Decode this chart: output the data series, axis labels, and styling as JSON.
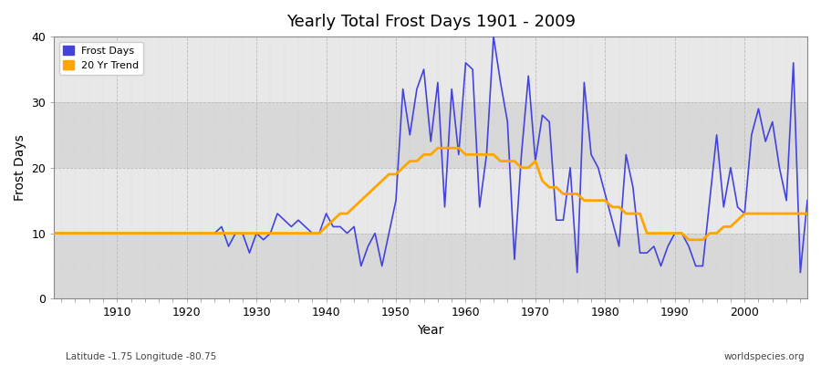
{
  "title": "Yearly Total Frost Days 1901 - 2009",
  "xlabel": "Year",
  "ylabel": "Frost Days",
  "footnote_left": "Latitude -1.75 Longitude -80.75",
  "footnote_right": "worldspecies.org",
  "legend_labels": [
    "Frost Days",
    "20 Yr Trend"
  ],
  "line_color": "#4444dd",
  "trend_color": "#FFA500",
  "background_color": "#ffffff",
  "plot_bg_color": "#e8e8e8",
  "band_color": "#d8d8d8",
  "ylim": [
    0,
    40
  ],
  "xlim": [
    1901,
    2009
  ],
  "frost_days": {
    "1901": 10,
    "1902": 10,
    "1903": 10,
    "1904": 10,
    "1905": 10,
    "1906": 10,
    "1907": 10,
    "1908": 10,
    "1909": 10,
    "1910": 10,
    "1911": 10,
    "1912": 10,
    "1913": 10,
    "1914": 10,
    "1915": 10,
    "1916": 10,
    "1917": 10,
    "1918": 10,
    "1919": 10,
    "1920": 10,
    "1921": 10,
    "1922": 10,
    "1923": 10,
    "1924": 10,
    "1925": 11,
    "1926": 8,
    "1927": 10,
    "1928": 10,
    "1929": 7,
    "1930": 10,
    "1931": 9,
    "1932": 10,
    "1933": 13,
    "1934": 12,
    "1935": 11,
    "1936": 12,
    "1937": 11,
    "1938": 10,
    "1939": 10,
    "1940": 13,
    "1941": 11,
    "1942": 11,
    "1943": 10,
    "1944": 11,
    "1945": 5,
    "1946": 8,
    "1947": 10,
    "1948": 5,
    "1949": 10,
    "1950": 15,
    "1951": 32,
    "1952": 25,
    "1953": 32,
    "1954": 35,
    "1955": 24,
    "1956": 33,
    "1957": 14,
    "1958": 32,
    "1959": 22,
    "1960": 36,
    "1961": 35,
    "1962": 14,
    "1963": 22,
    "1964": 40,
    "1965": 33,
    "1966": 27,
    "1967": 6,
    "1968": 22,
    "1969": 34,
    "1970": 21,
    "1971": 28,
    "1972": 27,
    "1973": 12,
    "1974": 12,
    "1975": 20,
    "1976": 4,
    "1977": 33,
    "1978": 22,
    "1979": 20,
    "1980": 16,
    "1981": 12,
    "1982": 8,
    "1983": 22,
    "1984": 17,
    "1985": 7,
    "1986": 7,
    "1987": 8,
    "1988": 5,
    "1989": 8,
    "1990": 10,
    "1991": 10,
    "1992": 8,
    "1993": 5,
    "1994": 5,
    "1995": 15,
    "1996": 25,
    "1997": 14,
    "1998": 20,
    "1999": 14,
    "2000": 13,
    "2001": 25,
    "2002": 29,
    "2003": 24,
    "2004": 27,
    "2005": 20,
    "2006": 15,
    "2007": 36,
    "2008": 4,
    "2009": 15
  },
  "trend_days": {
    "1901": 10,
    "1902": 10,
    "1903": 10,
    "1904": 10,
    "1905": 10,
    "1906": 10,
    "1907": 10,
    "1908": 10,
    "1909": 10,
    "1910": 10,
    "1911": 10,
    "1912": 10,
    "1913": 10,
    "1914": 10,
    "1915": 10,
    "1916": 10,
    "1917": 10,
    "1918": 10,
    "1919": 10,
    "1920": 10,
    "1921": 10,
    "1922": 10,
    "1923": 10,
    "1924": 10,
    "1925": 10,
    "1926": 10,
    "1927": 10,
    "1928": 10,
    "1929": 10,
    "1930": 10,
    "1931": 10,
    "1932": 10,
    "1933": 10,
    "1934": 10,
    "1935": 10,
    "1936": 10,
    "1937": 10,
    "1938": 10,
    "1939": 10,
    "1940": 11,
    "1941": 12,
    "1942": 13,
    "1943": 13,
    "1944": 14,
    "1945": 15,
    "1946": 16,
    "1947": 17,
    "1948": 18,
    "1949": 19,
    "1950": 19,
    "1951": 20,
    "1952": 21,
    "1953": 21,
    "1954": 22,
    "1955": 22,
    "1956": 23,
    "1957": 23,
    "1958": 23,
    "1959": 23,
    "1960": 22,
    "1961": 22,
    "1962": 22,
    "1963": 22,
    "1964": 22,
    "1965": 21,
    "1966": 21,
    "1967": 21,
    "1968": 20,
    "1969": 20,
    "1970": 21,
    "1971": 18,
    "1972": 17,
    "1973": 17,
    "1974": 16,
    "1975": 16,
    "1976": 16,
    "1977": 15,
    "1978": 15,
    "1979": 15,
    "1980": 15,
    "1981": 14,
    "1982": 14,
    "1983": 13,
    "1984": 13,
    "1985": 13,
    "1986": 10,
    "1987": 10,
    "1988": 10,
    "1989": 10,
    "1990": 10,
    "1991": 10,
    "1992": 9,
    "1993": 9,
    "1994": 9,
    "1995": 10,
    "1996": 10,
    "1997": 11,
    "1998": 11,
    "1999": 12,
    "2000": 13,
    "2001": 13,
    "2002": 13,
    "2003": 13,
    "2004": 13,
    "2005": 13,
    "2006": 13,
    "2007": 13,
    "2008": 13,
    "2009": 13
  }
}
